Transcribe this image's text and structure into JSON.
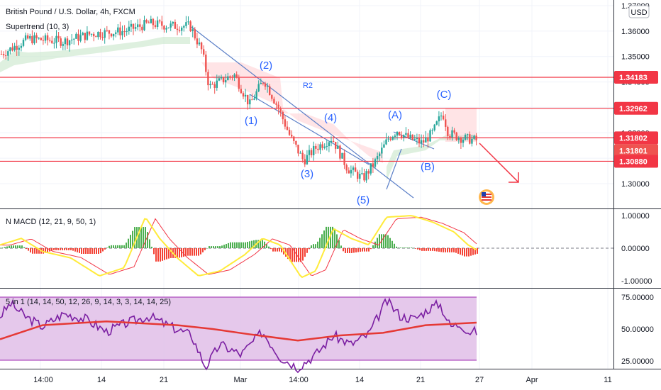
{
  "header": {
    "symbol_title": "British Pound / U.S. Dollar, 4h, FXCM",
    "indicator_supertrend": "Supertrend (10, 3)",
    "currency_badge": "USD"
  },
  "panes": {
    "macd_title": "N MACD (12, 21, 9, 50, 1)",
    "five_in_one_title": "5 in 1 (14, 14, 50, 12, 26, 9, 14, 3, 3, 14, 14, 25)"
  },
  "colors": {
    "up": "#26a69a",
    "down": "#ef5350",
    "hline": "#f23645",
    "trend": "#5b7fc7",
    "wave": "#2962ff",
    "macd_line": "#ffeb3b",
    "signal_line": "#f23645",
    "rsi_line": "#7b1fa2",
    "ema_line": "#e53935",
    "band_fill": "#e1bee7"
  },
  "chart_data": [
    {
      "type": "candlestick",
      "title": "British Pound / U.S. Dollar, 4h, FXCM",
      "y_ticks": [
        "1.37000",
        "1.36000",
        "1.35000",
        "1.34000",
        "1.33000",
        "1.32000",
        "1.31000",
        "1.30000"
      ],
      "ylim": [
        1.293,
        1.371
      ],
      "x_ticks": [
        "14:00",
        "14",
        "21",
        "Mar",
        "14:00",
        "14",
        "21",
        "27",
        "Apr",
        "11"
      ],
      "price_levels": [
        {
          "label": "1.34183",
          "value": 1.34183
        },
        {
          "label": "1.32962",
          "value": 1.32962
        },
        {
          "label": "1.31802",
          "value": 1.31802
        },
        {
          "label": "1.31801",
          "value": 1.31801
        },
        {
          "label": "1.30880",
          "value": 1.3088
        }
      ],
      "wave_labels": [
        {
          "text": "(1)",
          "price": 1.3233
        },
        {
          "text": "(2)",
          "price": 1.3483
        },
        {
          "text": "(3)",
          "price": 1.3063
        },
        {
          "text": "(4)",
          "price": 1.3233
        },
        {
          "text": "(5)",
          "price": 1.2973
        },
        {
          "text": "(A)",
          "price": 1.3243
        },
        {
          "text": "(B)",
          "price": 1.3083
        },
        {
          "text": "(C)",
          "price": 1.3363
        },
        {
          "text": "R2",
          "price": 1.3393
        }
      ],
      "grid": true
    },
    {
      "type": "line",
      "title": "N MACD (12, 21, 9, 50, 1)",
      "y_ticks": [
        "1.00000",
        "0.00000",
        "-1.00000"
      ],
      "ylim": [
        -1.1,
        1.1
      ],
      "zero_line": 0,
      "series": []
    },
    {
      "type": "line",
      "title": "5 in 1 (14, 14, 50, 12, 26, 9, 14, 3, 3, 14, 14, 25)",
      "y_ticks": [
        "75.00000",
        "50.00000",
        "25.00000"
      ],
      "ylim": [
        15,
        85
      ],
      "band": [
        20,
        80
      ],
      "series": []
    }
  ]
}
